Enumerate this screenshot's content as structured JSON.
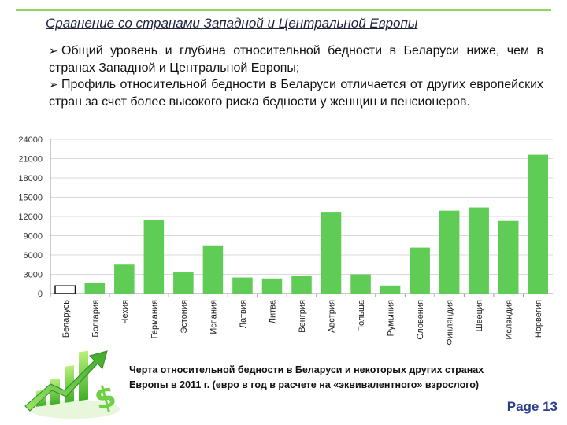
{
  "slide": {
    "title": "Сравнение со странами Западной и Центральной Европы",
    "bullets": [
      "Общий уровень и глубина относительной бедности в Беларуси ниже, чем в странах Западной и Центральной Европы;",
      "Профиль относительной бедности в Беларуси отличается от других европейских стран за счет более высокого риска бедности у женщин и пенсионеров."
    ],
    "bullet_icon": "arrow-bullet-icon",
    "caption_line1": "Черта относительной бедности в Беларуси и некоторых других странах",
    "caption_line2": "Европы в 2011 г. (евро в год в расчете на «эквивалентного» взрослого)",
    "page_label": "Page 13",
    "logo_icon": "growth-chart-dollar-icon"
  },
  "chart_data": {
    "type": "bar",
    "categories": [
      "Беларусь",
      "Болгария",
      "Чехия",
      "Германия",
      "Эстония",
      "Испания",
      "Латвия",
      "Литва",
      "Венгрия",
      "Австрия",
      "Польша",
      "Румыния",
      "Словения",
      "Финляндия",
      "Швеция",
      "Исландия",
      "Норвегия"
    ],
    "values": [
      1200,
      1650,
      4500,
      11400,
      3300,
      7500,
      2500,
      2350,
      2700,
      12600,
      3000,
      1250,
      7150,
      12900,
      13400,
      11300,
      21600
    ],
    "ylim": [
      0,
      24000
    ],
    "yticks": [
      0,
      3000,
      6000,
      9000,
      12000,
      15000,
      18000,
      21000,
      24000
    ],
    "grid": true,
    "highlight_category": "Беларусь",
    "colors": {
      "bar": "#5fcc55",
      "highlight": "#111111",
      "grid": "#d9d9d9"
    }
  }
}
